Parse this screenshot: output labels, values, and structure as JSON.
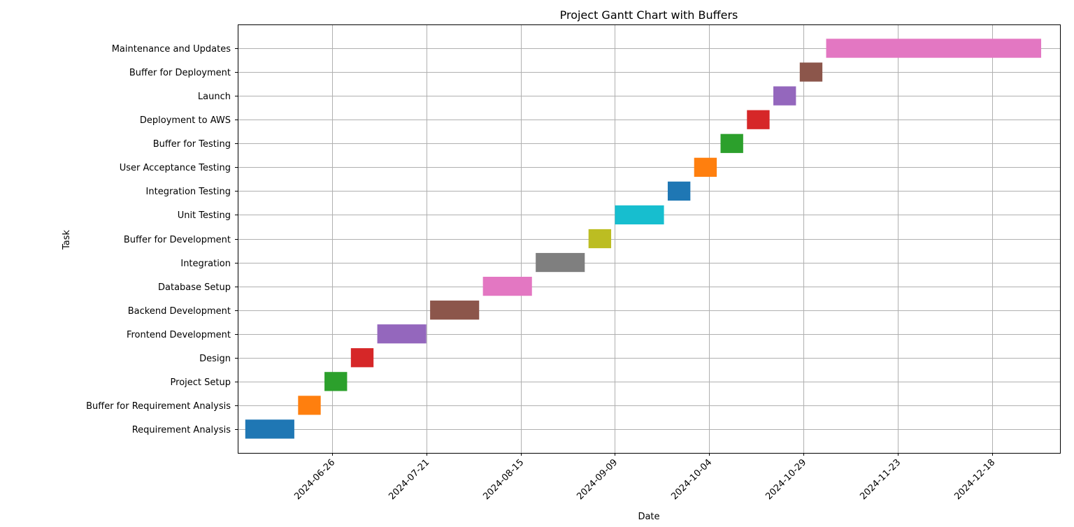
{
  "chart_data": {
    "type": "gantt",
    "title": "Project Gantt Chart with Buffers",
    "xlabel": "Date",
    "ylabel": "Task",
    "xlim": [
      "2024-06-01",
      "2025-01-05"
    ],
    "x_ticks": [
      "2024-06-26",
      "2024-07-21",
      "2024-08-15",
      "2024-09-09",
      "2024-10-04",
      "2024-10-29",
      "2024-11-23",
      "2024-12-18"
    ],
    "grid": true,
    "tasks": [
      {
        "name": "Requirement Analysis",
        "start": "2024-06-03",
        "end": "2024-06-16",
        "color": "#1f77b4"
      },
      {
        "name": "Buffer for Requirement Analysis",
        "start": "2024-06-17",
        "end": "2024-06-23",
        "color": "#ff7f0e"
      },
      {
        "name": "Project Setup",
        "start": "2024-06-24",
        "end": "2024-06-30",
        "color": "#2ca02c"
      },
      {
        "name": "Design",
        "start": "2024-07-01",
        "end": "2024-07-07",
        "color": "#d62728"
      },
      {
        "name": "Frontend Development",
        "start": "2024-07-08",
        "end": "2024-07-21",
        "color": "#9467bd"
      },
      {
        "name": "Backend Development",
        "start": "2024-07-22",
        "end": "2024-08-04",
        "color": "#8c564b"
      },
      {
        "name": "Database Setup",
        "start": "2024-08-05",
        "end": "2024-08-18",
        "color": "#e377c2"
      },
      {
        "name": "Integration",
        "start": "2024-08-19",
        "end": "2024-09-01",
        "color": "#7f7f7f"
      },
      {
        "name": "Buffer for Development",
        "start": "2024-09-02",
        "end": "2024-09-08",
        "color": "#bcbd22"
      },
      {
        "name": "Unit Testing",
        "start": "2024-09-09",
        "end": "2024-09-22",
        "color": "#17becf"
      },
      {
        "name": "Integration Testing",
        "start": "2024-09-23",
        "end": "2024-09-29",
        "color": "#1f77b4"
      },
      {
        "name": "User Acceptance Testing",
        "start": "2024-09-30",
        "end": "2024-10-06",
        "color": "#ff7f0e"
      },
      {
        "name": "Buffer for Testing",
        "start": "2024-10-07",
        "end": "2024-10-13",
        "color": "#2ca02c"
      },
      {
        "name": "Deployment to AWS",
        "start": "2024-10-14",
        "end": "2024-10-20",
        "color": "#d62728"
      },
      {
        "name": "Launch",
        "start": "2024-10-21",
        "end": "2024-10-27",
        "color": "#9467bd"
      },
      {
        "name": "Buffer for Deployment",
        "start": "2024-10-28",
        "end": "2024-11-03",
        "color": "#8c564b"
      },
      {
        "name": "Maintenance and Updates",
        "start": "2024-11-04",
        "end": "2024-12-31",
        "color": "#e377c2"
      }
    ]
  }
}
